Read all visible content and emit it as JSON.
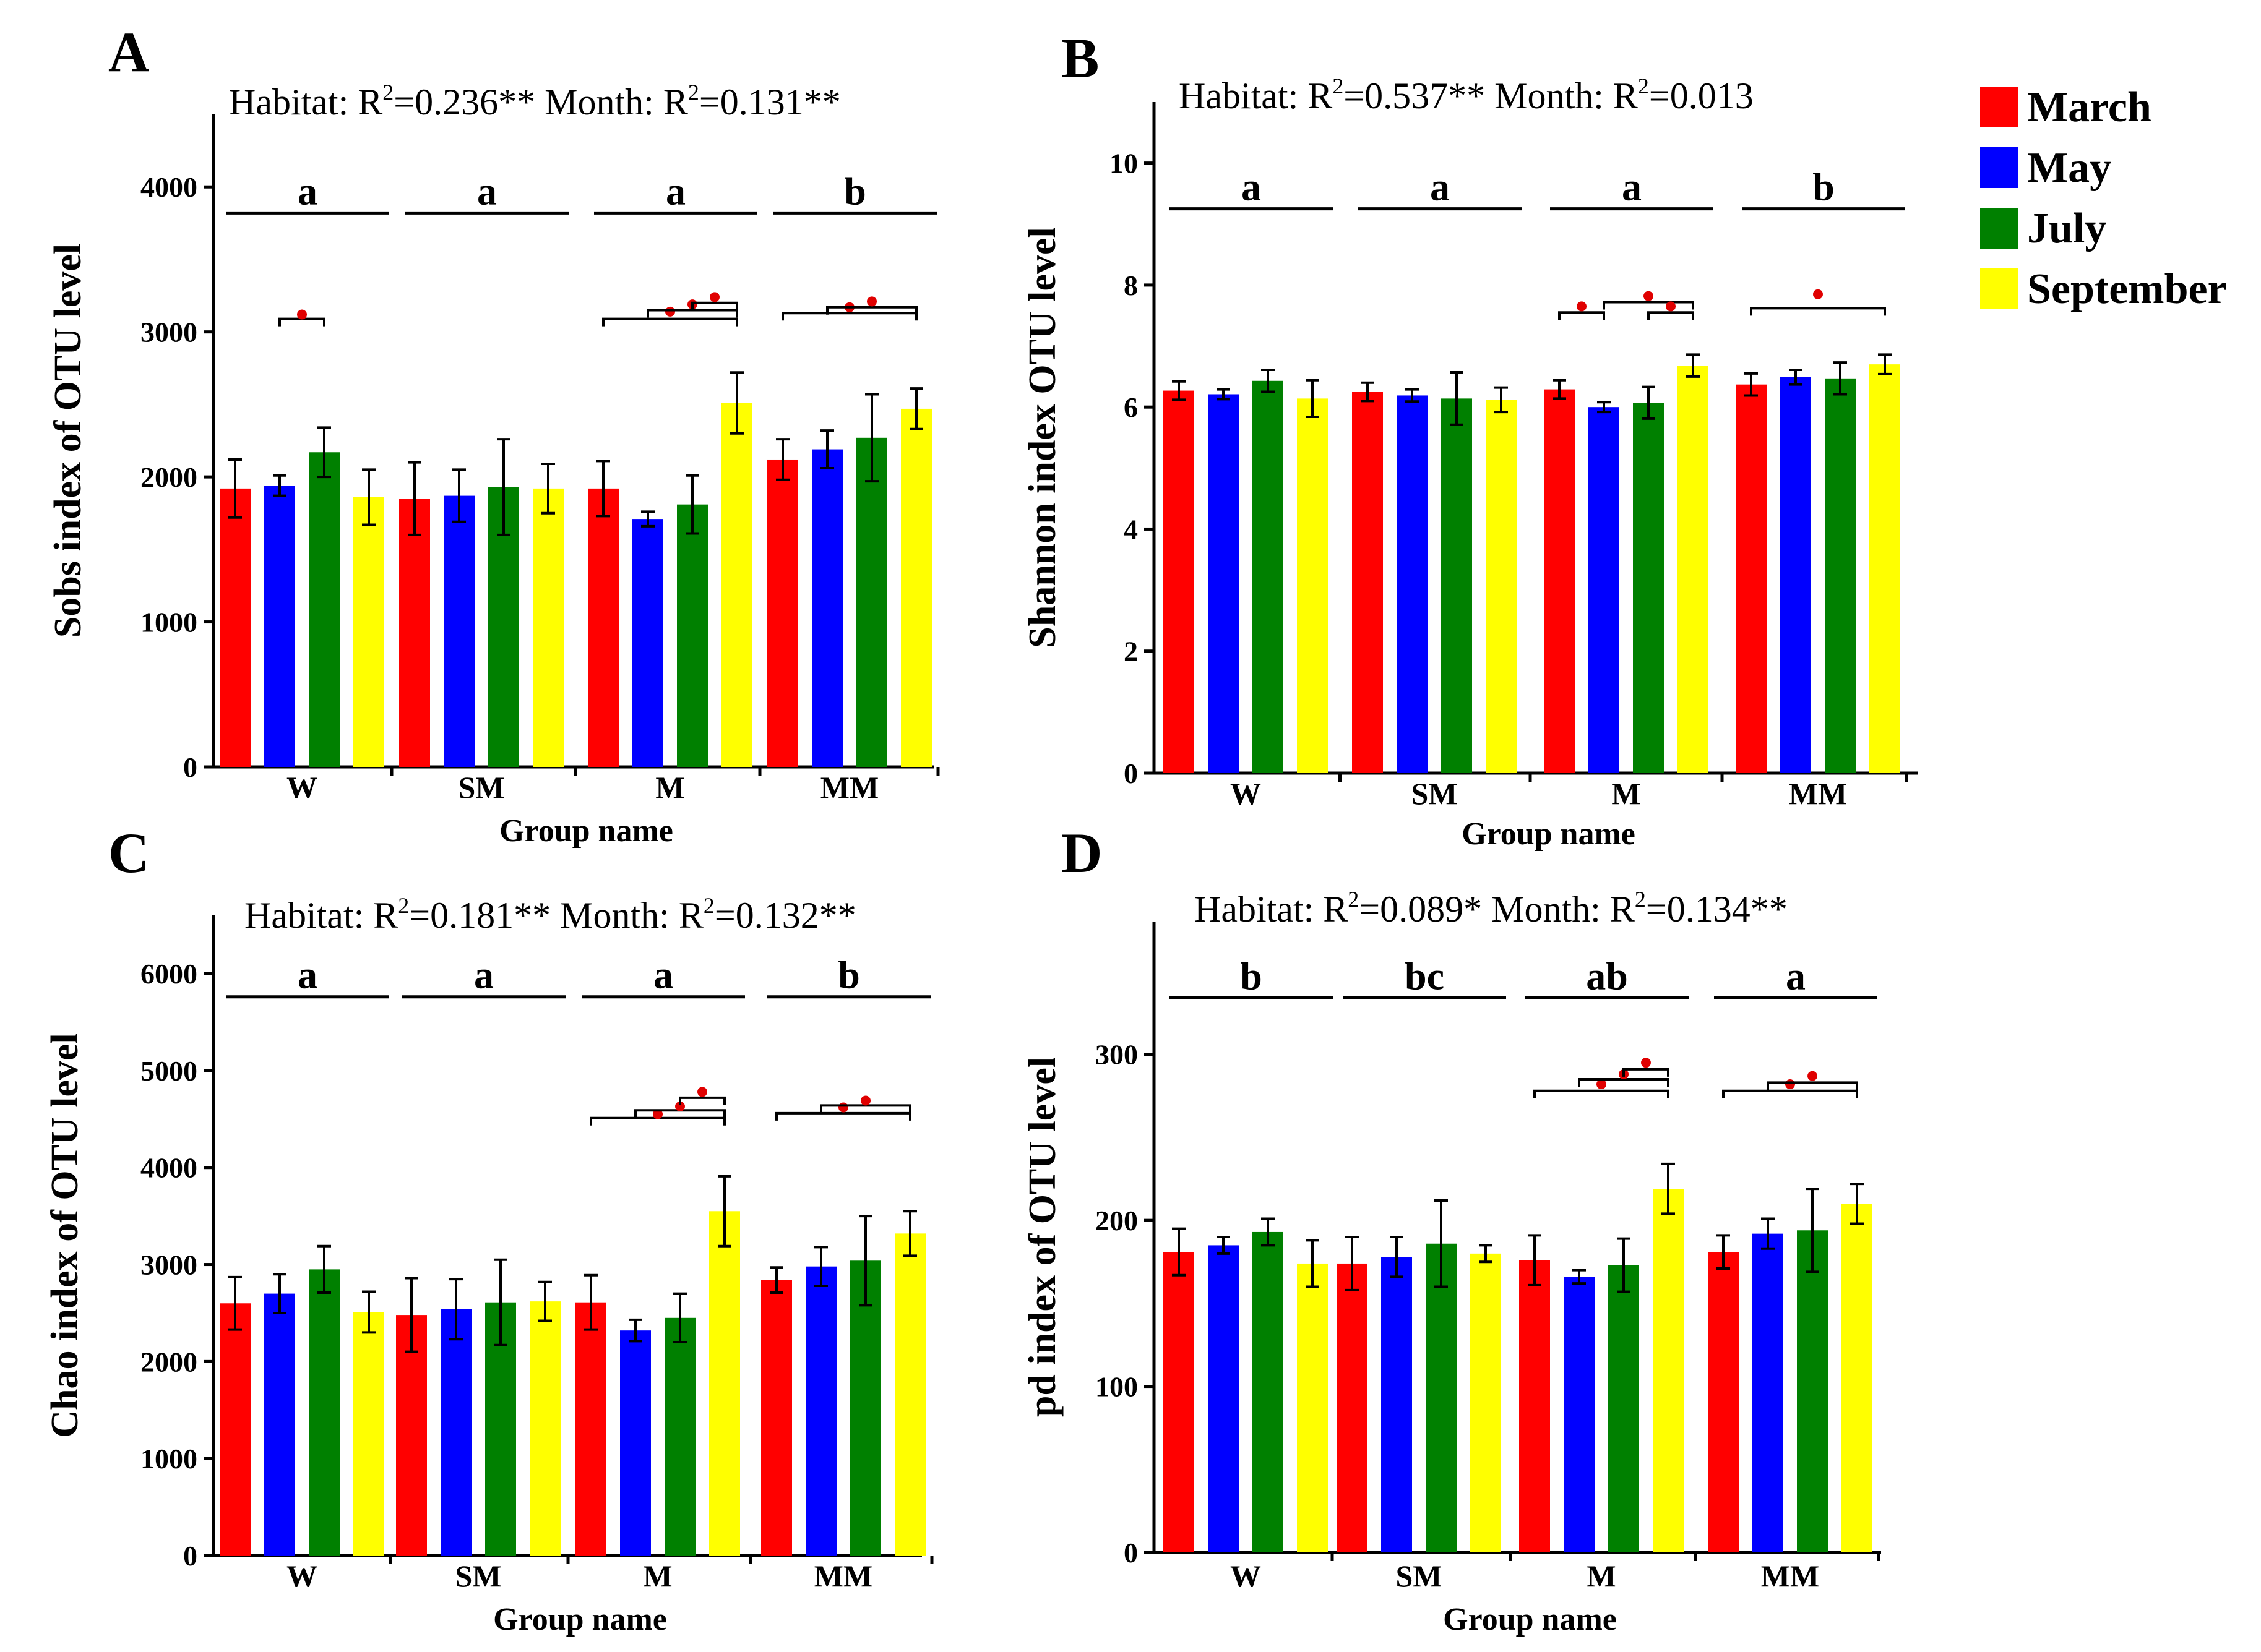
{
  "figure": {
    "colors": {
      "March": "#ff0000",
      "May": "#0000ff",
      "July": "#008000",
      "September": "#ffff00"
    },
    "legend": [
      "March",
      "May",
      "July",
      "September"
    ]
  },
  "chart_data": [
    {
      "id": "A",
      "type": "bar",
      "letter": "A",
      "stats": {
        "habitat_label": "Habitat: R",
        "habitat_value": "=0.236**",
        "month_label": "Month: R",
        "month_value": "=0.131**",
        "sup": "2"
      },
      "ylabel": "Sobs index of OTU level",
      "xlabel": "Group name",
      "ylim": [
        0,
        4500
      ],
      "yticks": [
        0,
        1000,
        2000,
        3000,
        4000
      ],
      "categories": [
        "W",
        "SM",
        "M",
        "MM"
      ],
      "series": [
        {
          "name": "March",
          "values": [
            1920,
            1850,
            1920,
            2120
          ],
          "errors": [
            200,
            250,
            190,
            140
          ]
        },
        {
          "name": "May",
          "values": [
            1940,
            1870,
            1710,
            2190
          ],
          "errors": [
            70,
            180,
            50,
            130
          ]
        },
        {
          "name": "July",
          "values": [
            2170,
            1930,
            1810,
            2270
          ],
          "errors": [
            170,
            330,
            200,
            300
          ]
        },
        {
          "name": "September",
          "values": [
            1860,
            1920,
            2510,
            2470
          ],
          "errors": [
            190,
            170,
            210,
            140
          ]
        }
      ],
      "group_letters": [
        "a",
        "a",
        "a",
        "b"
      ],
      "group_line_value": 3820,
      "brackets": [
        {
          "group": 0,
          "from": 1,
          "to": 2,
          "level": 3090,
          "dot": 3120
        },
        {
          "group": 2,
          "from": 0,
          "to": 3,
          "level": 3090,
          "dot": 3140
        },
        {
          "group": 2,
          "from": 1,
          "to": 3,
          "level": 3150,
          "dot": 3190
        },
        {
          "group": 2,
          "from": 2,
          "to": 3,
          "level": 3200,
          "dot": 3240
        },
        {
          "group": 3,
          "from": 0,
          "to": 3,
          "level": 3130,
          "dot": 3170
        },
        {
          "group": 3,
          "from": 1,
          "to": 3,
          "level": 3170,
          "dot": 3210
        }
      ]
    },
    {
      "id": "B",
      "type": "bar",
      "letter": "B",
      "stats": {
        "habitat_label": "Habitat: R",
        "habitat_value": "=0.537**",
        "month_label": "Month: R",
        "month_value": "=0.013",
        "sup": "2"
      },
      "ylabel": "Shannon index OTU level",
      "xlabel": "Group name",
      "ylim": [
        0,
        11
      ],
      "yticks": [
        0,
        2,
        4,
        6,
        8,
        10
      ],
      "categories": [
        "W",
        "SM",
        "M",
        "MM"
      ],
      "series": [
        {
          "name": "March",
          "values": [
            6.27,
            6.25,
            6.29,
            6.37
          ],
          "errors": [
            0.15,
            0.15,
            0.15,
            0.18
          ]
        },
        {
          "name": "May",
          "values": [
            6.21,
            6.19,
            6.0,
            6.49
          ],
          "errors": [
            0.08,
            0.1,
            0.08,
            0.12
          ]
        },
        {
          "name": "July",
          "values": [
            6.43,
            6.14,
            6.07,
            6.47
          ],
          "errors": [
            0.18,
            0.43,
            0.26,
            0.26
          ]
        },
        {
          "name": "September",
          "values": [
            6.14,
            6.12,
            6.68,
            6.7
          ],
          "errors": [
            0.3,
            0.2,
            0.18,
            0.16
          ]
        }
      ],
      "group_letters": [
        "a",
        "a",
        "a",
        "b"
      ],
      "group_line_value": 9.25,
      "brackets": [
        {
          "group": 2,
          "from": 0,
          "to": 1,
          "level": 7.55,
          "dot": 7.65
        },
        {
          "group": 2,
          "from": 1,
          "to": 3,
          "level": 7.72,
          "dot": 7.82
        },
        {
          "group": 2,
          "from": 2,
          "to": 3,
          "level": 7.55,
          "dot": 7.65
        },
        {
          "group": 3,
          "from": 0,
          "to": 3,
          "level": 7.62,
          "dot": 7.85
        }
      ]
    },
    {
      "id": "C",
      "type": "bar",
      "letter": "C",
      "stats": {
        "habitat_label": "Habitat: R",
        "habitat_value": "=0.181**",
        "month_label": "Month: R",
        "month_value": "=0.132**",
        "sup": "2"
      },
      "ylabel": "Chao index of OTU level",
      "xlabel": "Group name",
      "ylim": [
        0,
        6600
      ],
      "yticks": [
        0,
        1000,
        2000,
        3000,
        4000,
        5000,
        6000
      ],
      "categories": [
        "W",
        "SM",
        "M",
        "MM"
      ],
      "series": [
        {
          "name": "March",
          "values": [
            2600,
            2480,
            2610,
            2840
          ],
          "errors": [
            270,
            380,
            280,
            130
          ]
        },
        {
          "name": "May",
          "values": [
            2700,
            2540,
            2320,
            2980
          ],
          "errors": [
            200,
            310,
            110,
            200
          ]
        },
        {
          "name": "July",
          "values": [
            2950,
            2610,
            2450,
            3040
          ],
          "errors": [
            240,
            440,
            250,
            460
          ]
        },
        {
          "name": "September",
          "values": [
            2510,
            2620,
            3550,
            3320
          ],
          "errors": [
            210,
            200,
            360,
            230
          ]
        }
      ],
      "group_letters": [
        "a",
        "a",
        "a",
        "b"
      ],
      "group_line_value": 5760,
      "brackets": [
        {
          "group": 2,
          "from": 0,
          "to": 3,
          "level": 4510,
          "dot": 4550
        },
        {
          "group": 2,
          "from": 1,
          "to": 3,
          "level": 4590,
          "dot": 4630
        },
        {
          "group": 2,
          "from": 2,
          "to": 3,
          "level": 4720,
          "dot": 4780
        },
        {
          "group": 3,
          "from": 0,
          "to": 3,
          "level": 4560,
          "dot": 4620
        },
        {
          "group": 3,
          "from": 1,
          "to": 3,
          "level": 4640,
          "dot": 4690
        }
      ]
    },
    {
      "id": "D",
      "type": "bar",
      "letter": "D",
      "stats": {
        "habitat_label": "Habitat: R",
        "habitat_value": "=0.089*",
        "month_label": "Month: R",
        "month_value": "=0.134**",
        "sup": "2"
      },
      "ylabel": "pd index of OTU level",
      "xlabel": "Group name",
      "ylim": [
        0,
        380
      ],
      "yticks": [
        0,
        100,
        200,
        300
      ],
      "categories": [
        "W",
        "SM",
        "M",
        "MM"
      ],
      "series": [
        {
          "name": "March",
          "values": [
            181,
            174,
            176,
            181
          ],
          "errors": [
            14,
            16,
            15,
            10
          ]
        },
        {
          "name": "May",
          "values": [
            185,
            178,
            166,
            192
          ],
          "errors": [
            5,
            12,
            4,
            9
          ]
        },
        {
          "name": "July",
          "values": [
            193,
            186,
            173,
            194
          ],
          "errors": [
            8,
            26,
            16,
            25
          ]
        },
        {
          "name": "September",
          "values": [
            174,
            180,
            219,
            210
          ],
          "errors": [
            14,
            5,
            15,
            12
          ]
        }
      ],
      "group_letters": [
        "b",
        "bc",
        "ab",
        "a"
      ],
      "group_line_value": 334,
      "brackets": [
        {
          "group": 2,
          "from": 0,
          "to": 3,
          "level": 278,
          "dot": 282
        },
        {
          "group": 2,
          "from": 1,
          "to": 3,
          "level": 285,
          "dot": 288
        },
        {
          "group": 2,
          "from": 2,
          "to": 3,
          "level": 291,
          "dot": 295
        },
        {
          "group": 3,
          "from": 0,
          "to": 3,
          "level": 278,
          "dot": 282
        },
        {
          "group": 3,
          "from": 1,
          "to": 3,
          "level": 283,
          "dot": 287
        }
      ]
    }
  ]
}
